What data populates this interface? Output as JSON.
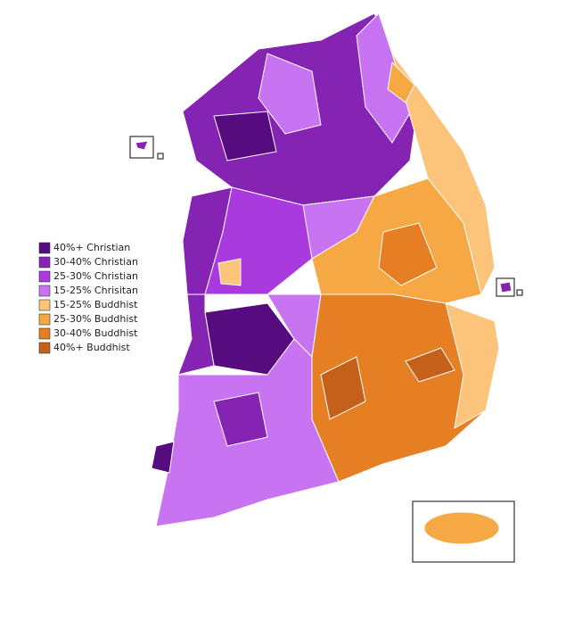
{
  "legend": {
    "items": [
      {
        "label": "40%+ Christian",
        "color": "#560b7e"
      },
      {
        "label": "30-40% Christian",
        "color": "#8523b3"
      },
      {
        "label": "25-30% Christian",
        "color": "#a93ade"
      },
      {
        "label": "15-25% Chrisitan",
        "color": "#c873f2"
      },
      {
        "label": "15-25% Buddhist",
        "color": "#fbc47a"
      },
      {
        "label": "25-30% Buddhist",
        "color": "#f5a843"
      },
      {
        "label": "30-40% Buddhist",
        "color": "#e67f24"
      },
      {
        "label": "40%+ Buddhist",
        "color": "#c5601b"
      }
    ]
  }
}
